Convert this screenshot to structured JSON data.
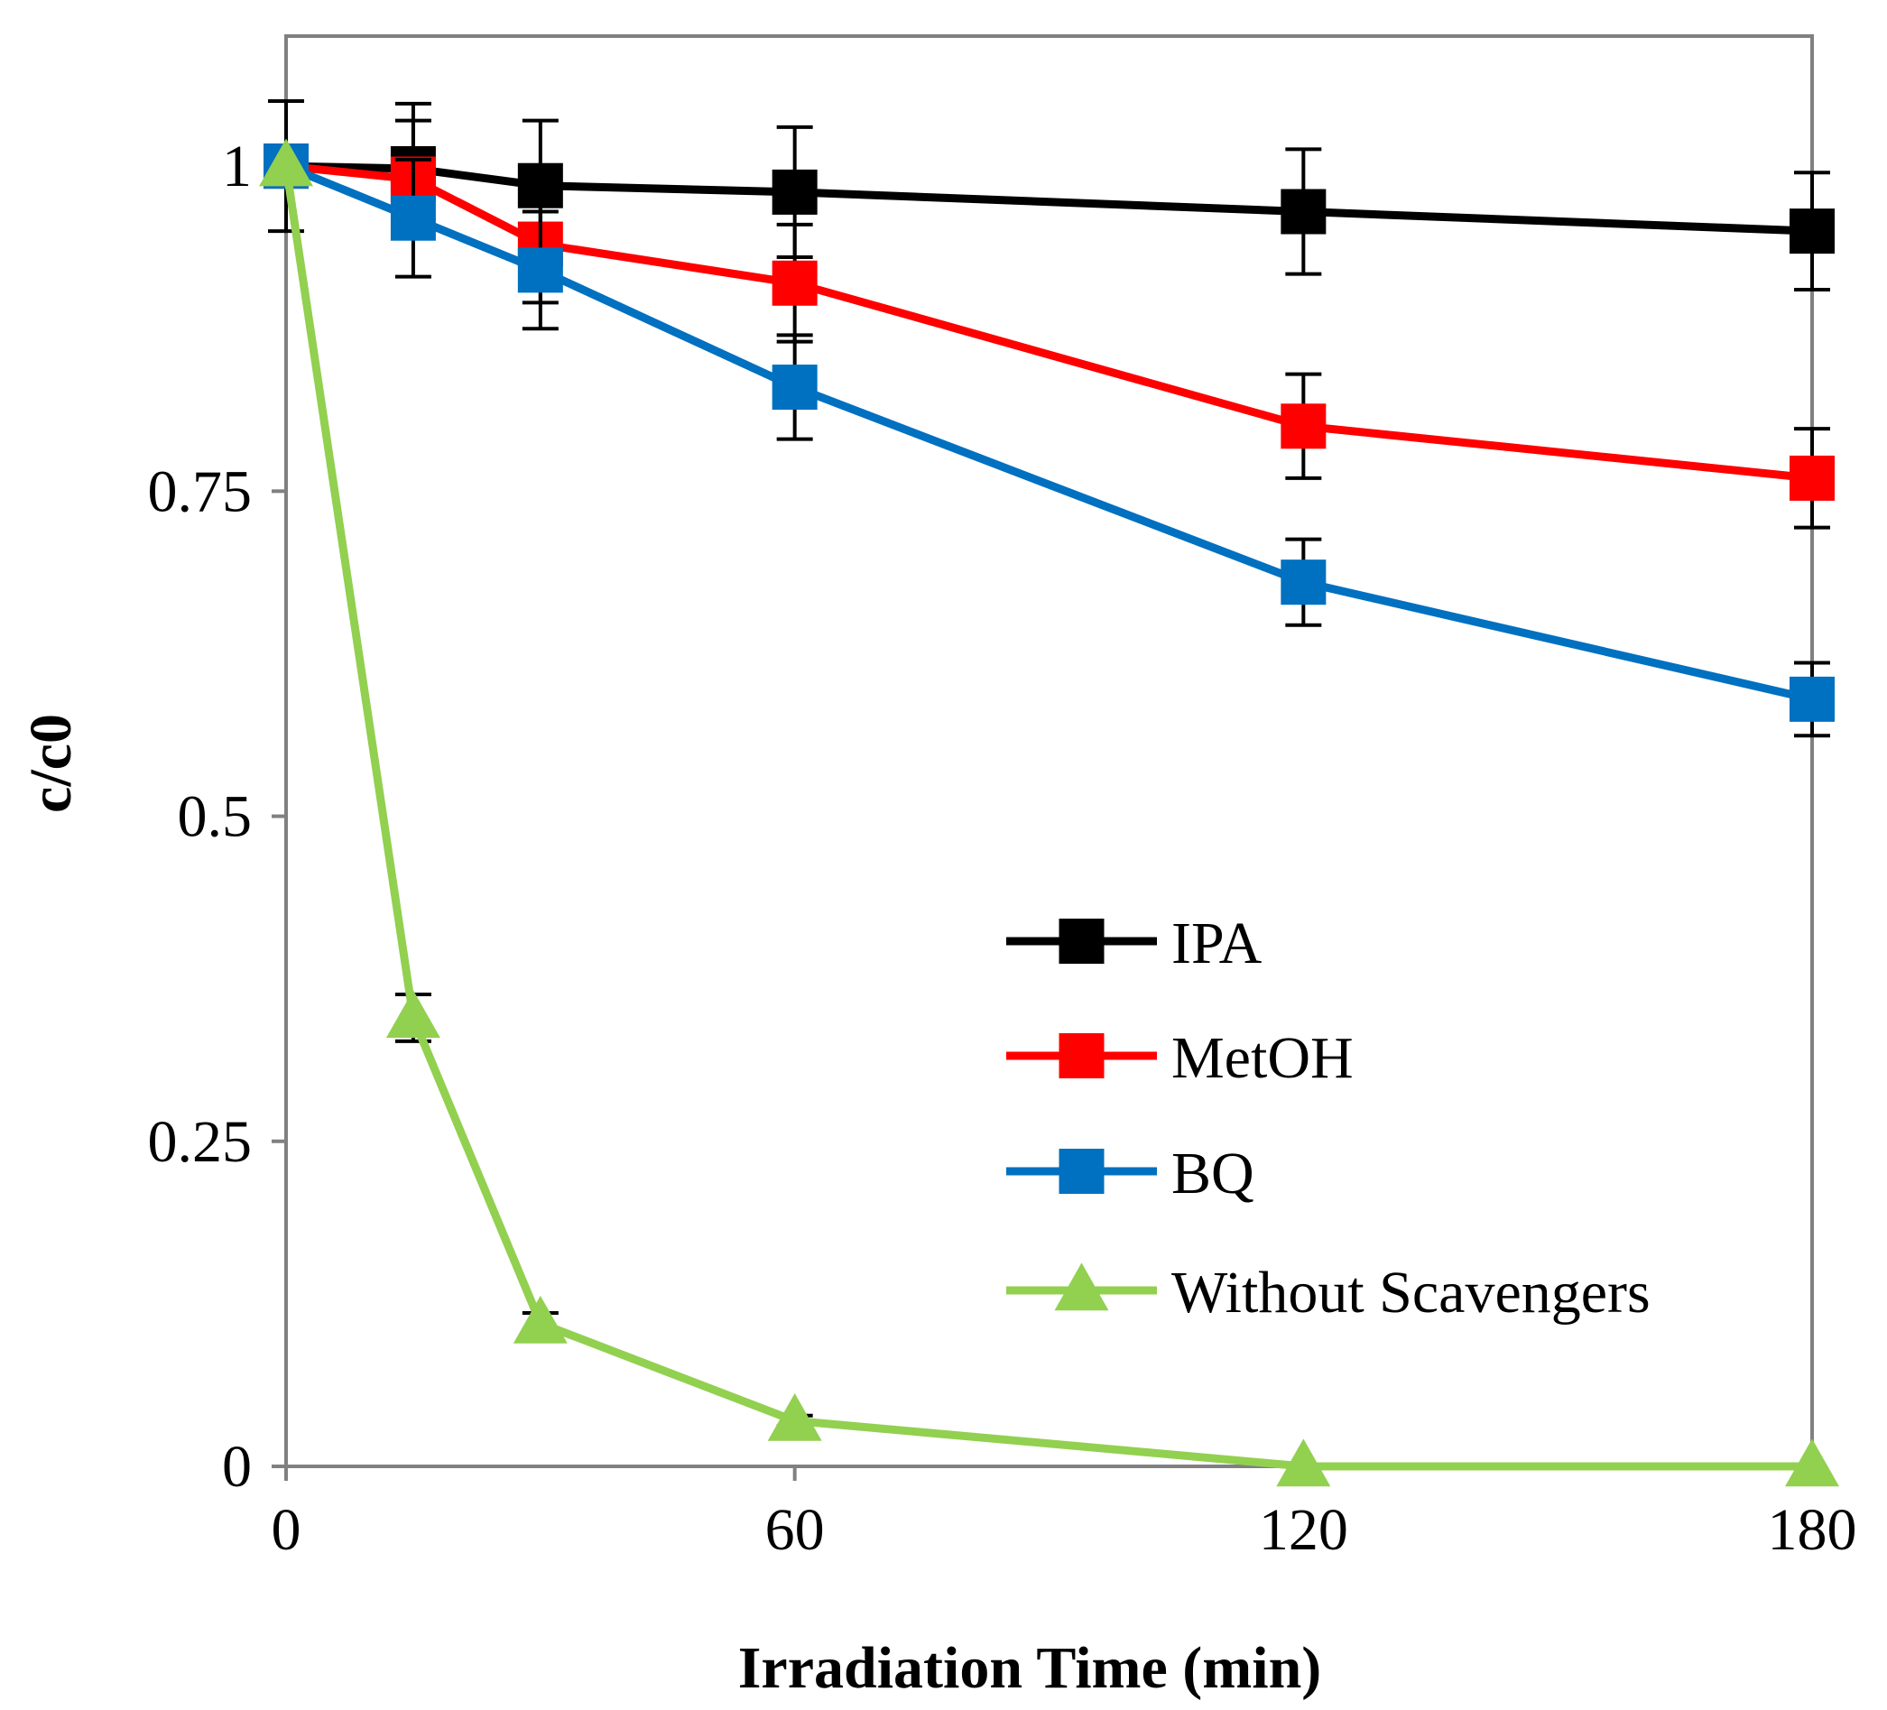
{
  "chart_data": {
    "type": "line",
    "title": "",
    "xlabel": "Irradiation Time (min)",
    "ylabel": "c/c0",
    "xlim": [
      0,
      180
    ],
    "ylim": [
      0,
      1.1
    ],
    "x_ticks": [
      0,
      60,
      120,
      180
    ],
    "x_tick_labels": [
      "0",
      "60",
      "120",
      "180"
    ],
    "y_ticks": [
      0,
      0.25,
      0.5,
      0.75,
      1
    ],
    "y_tick_labels": [
      "0",
      "0.25",
      "0.5",
      "0.75",
      "1"
    ],
    "grid": false,
    "legend_position": "center-right",
    "series": [
      {
        "name": "IPA",
        "color": "#000000",
        "marker": "square",
        "x": [
          0,
          15,
          30,
          60,
          120,
          180
        ],
        "y": [
          1.0,
          0.998,
          0.985,
          0.98,
          0.965,
          0.95
        ],
        "error": [
          0.05,
          0.05,
          0.05,
          0.05,
          0.048,
          0.045
        ]
      },
      {
        "name": "MetOH",
        "color": "#ff0000",
        "marker": "square",
        "x": [
          0,
          15,
          30,
          60,
          120,
          180
        ],
        "y": [
          1.0,
          0.99,
          0.94,
          0.91,
          0.8,
          0.76
        ],
        "error": [
          0.0,
          0.045,
          0.045,
          0.045,
          0.04,
          0.038
        ]
      },
      {
        "name": "BQ",
        "color": "#0070c0",
        "marker": "square",
        "x": [
          0,
          15,
          30,
          60,
          120,
          180
        ],
        "y": [
          1.0,
          0.96,
          0.92,
          0.83,
          0.68,
          0.59
        ],
        "error": [
          0.0,
          0.045,
          0.045,
          0.04,
          0.033,
          0.028
        ]
      },
      {
        "name": "Without Scavengers",
        "color": "#92d050",
        "marker": "triangle",
        "x": [
          0,
          15,
          30,
          60,
          120,
          180
        ],
        "y": [
          1.0,
          0.345,
          0.11,
          0.035,
          0.0,
          0.0
        ],
        "error": [
          0.0,
          0.018,
          0.008,
          0.004,
          0.0,
          0.0
        ]
      }
    ]
  }
}
